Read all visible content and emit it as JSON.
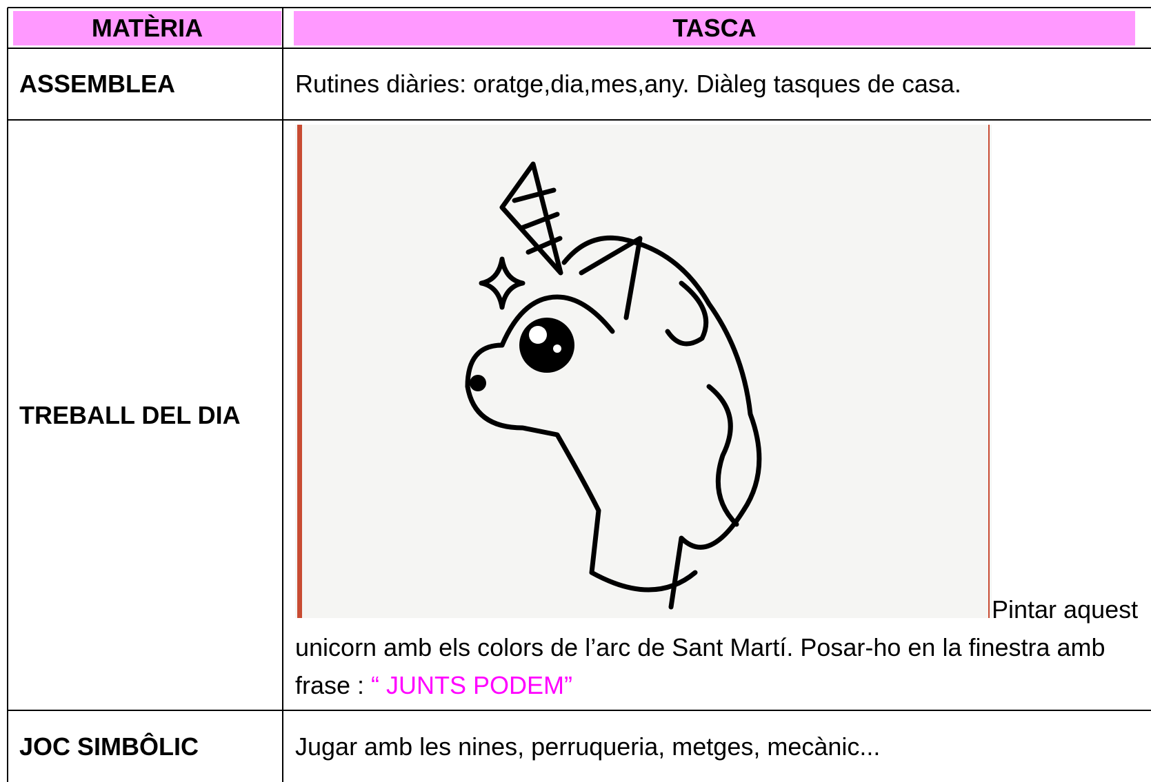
{
  "table": {
    "columns": [
      "MATÈRIA",
      "TASCA"
    ],
    "rows": [
      [
        "ASSEMBLEA",
        "Rutines diàries: oratge,dia,mes,any. Diàleg tasques de casa."
      ],
      [
        "TREBALL DEL DIA",
        {
          "text": "Pintar aquest unicorn amb els colors de l’arc de Sant Martí. Posar-ho en la finestra amb  frase : ",
          "highlight": "“ JUNTS PODEM”"
        }
      ],
      [
        "JOC SIMBÔLIC",
        "Jugar amb les nines, perruqueria, metges, mecànic..."
      ]
    ]
  }
}
